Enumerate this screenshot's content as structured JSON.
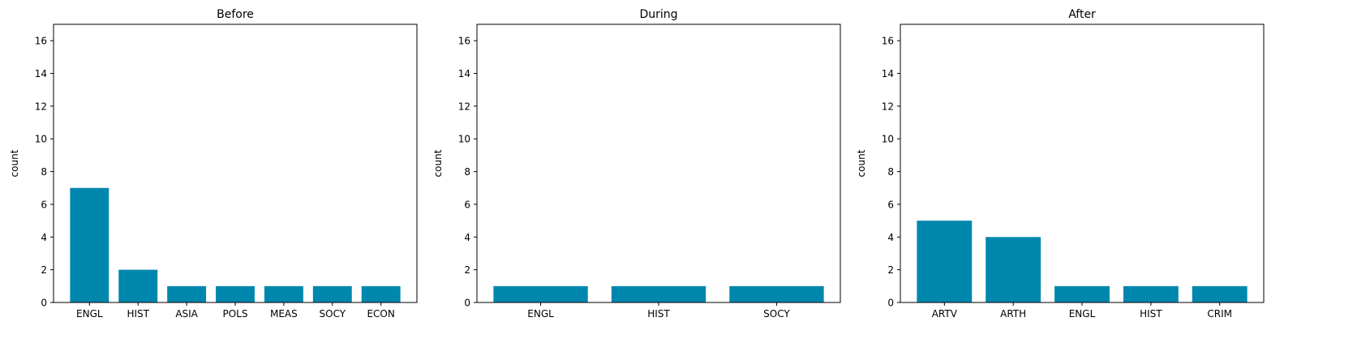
{
  "bar_color": "#0087ae",
  "chart_data": [
    {
      "type": "bar",
      "title": "Before",
      "xlabel": "",
      "ylabel": "count",
      "ylim": [
        0,
        17
      ],
      "yticks": [
        0,
        2,
        4,
        6,
        8,
        10,
        12,
        14,
        16
      ],
      "categories": [
        "ENGL",
        "HIST",
        "ASIA",
        "POLS",
        "MEAS",
        "SOCY",
        "ECON"
      ],
      "values": [
        7,
        2,
        1,
        1,
        1,
        1,
        1
      ],
      "grid": false
    },
    {
      "type": "bar",
      "title": "During",
      "xlabel": "",
      "ylabel": "count",
      "ylim": [
        0,
        17
      ],
      "yticks": [
        0,
        2,
        4,
        6,
        8,
        10,
        12,
        14,
        16
      ],
      "categories": [
        "ENGL",
        "HIST",
        "SOCY"
      ],
      "values": [
        1,
        1,
        1
      ],
      "grid": false
    },
    {
      "type": "bar",
      "title": "After",
      "xlabel": "",
      "ylabel": "count",
      "ylim": [
        0,
        17
      ],
      "yticks": [
        0,
        2,
        4,
        6,
        8,
        10,
        12,
        14,
        16
      ],
      "categories": [
        "ARTV",
        "ARTH",
        "ENGL",
        "HIST",
        "CRIM"
      ],
      "values": [
        5,
        4,
        1,
        1,
        1
      ],
      "grid": false
    }
  ]
}
